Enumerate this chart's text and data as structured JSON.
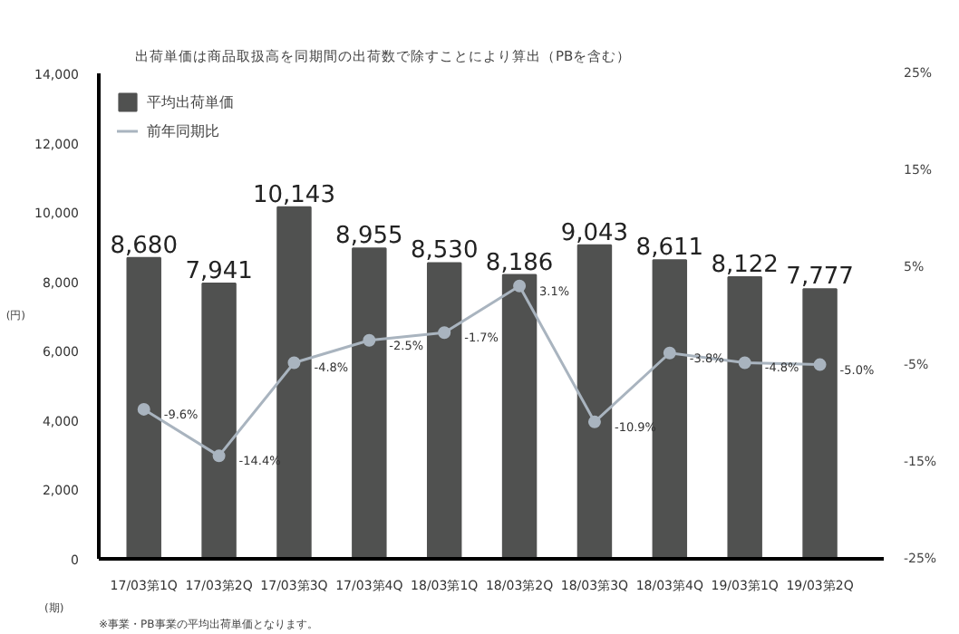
{
  "chart_data": {
    "type": "bar",
    "title": "出荷単価は商品取扱高を同期間の出荷数で除すことにより算出（PBを含む）",
    "categories": [
      "17/03第1Q",
      "17/03第2Q",
      "17/03第3Q",
      "17/03第4Q",
      "18/03第1Q",
      "18/03第2Q",
      "18/03第3Q",
      "18/03第4Q",
      "19/03第1Q",
      "19/03第2Q"
    ],
    "xlabel": "(期)",
    "ylabel": "(円)",
    "series": [
      {
        "name": "平均出荷単価",
        "color": "#505150",
        "values": [
          8680,
          7941,
          10143,
          8955,
          8530,
          8186,
          9043,
          8611,
          8122,
          7777
        ],
        "value_labels": [
          "8,680",
          "7,941",
          "10,143",
          "8,955",
          "8,530",
          "8,186",
          "9,043",
          "8,611",
          "8,122",
          "7,777"
        ]
      },
      {
        "name": "前年同期比",
        "type": "line",
        "axis": "y2",
        "color": "#a9b4bf",
        "marker": "circle",
        "values": [
          -9.6,
          -14.4,
          -4.8,
          -2.5,
          -1.7,
          3.1,
          -10.9,
          -3.8,
          -4.8,
          -5.0
        ],
        "value_labels": [
          "-9.6%",
          "-14.4%",
          "-4.8%",
          "-2.5%",
          "-1.7%",
          "3.1%",
          "-10.9%",
          "-3.8%",
          "-4.8%",
          "-5.0%"
        ]
      }
    ],
    "ylim": [
      0,
      14000
    ],
    "yticks": [
      {
        "value": 0,
        "label": "0"
      },
      {
        "value": 2000,
        "label": "2,000"
      },
      {
        "value": 4000,
        "label": "4,000"
      },
      {
        "value": 6000,
        "label": "6,000"
      },
      {
        "value": 8000,
        "label": "8,000"
      },
      {
        "value": 10000,
        "label": "10,000"
      },
      {
        "value": 12000,
        "label": "12,000"
      },
      {
        "value": 14000,
        "label": "14,000"
      }
    ],
    "y2lim": [
      -25,
      25
    ],
    "y2ticks": [
      {
        "value": -25,
        "label": "-25%"
      },
      {
        "value": -15,
        "label": "-15%"
      },
      {
        "value": -5,
        "label": "-5%"
      },
      {
        "value": 5,
        "label": "5%"
      },
      {
        "value": 15,
        "label": "15%"
      },
      {
        "value": 25,
        "label": "25%"
      }
    ],
    "grid": false,
    "legend": "top left",
    "annotations": [
      "※事業・PB事業の平均出荷単価となります。"
    ]
  }
}
